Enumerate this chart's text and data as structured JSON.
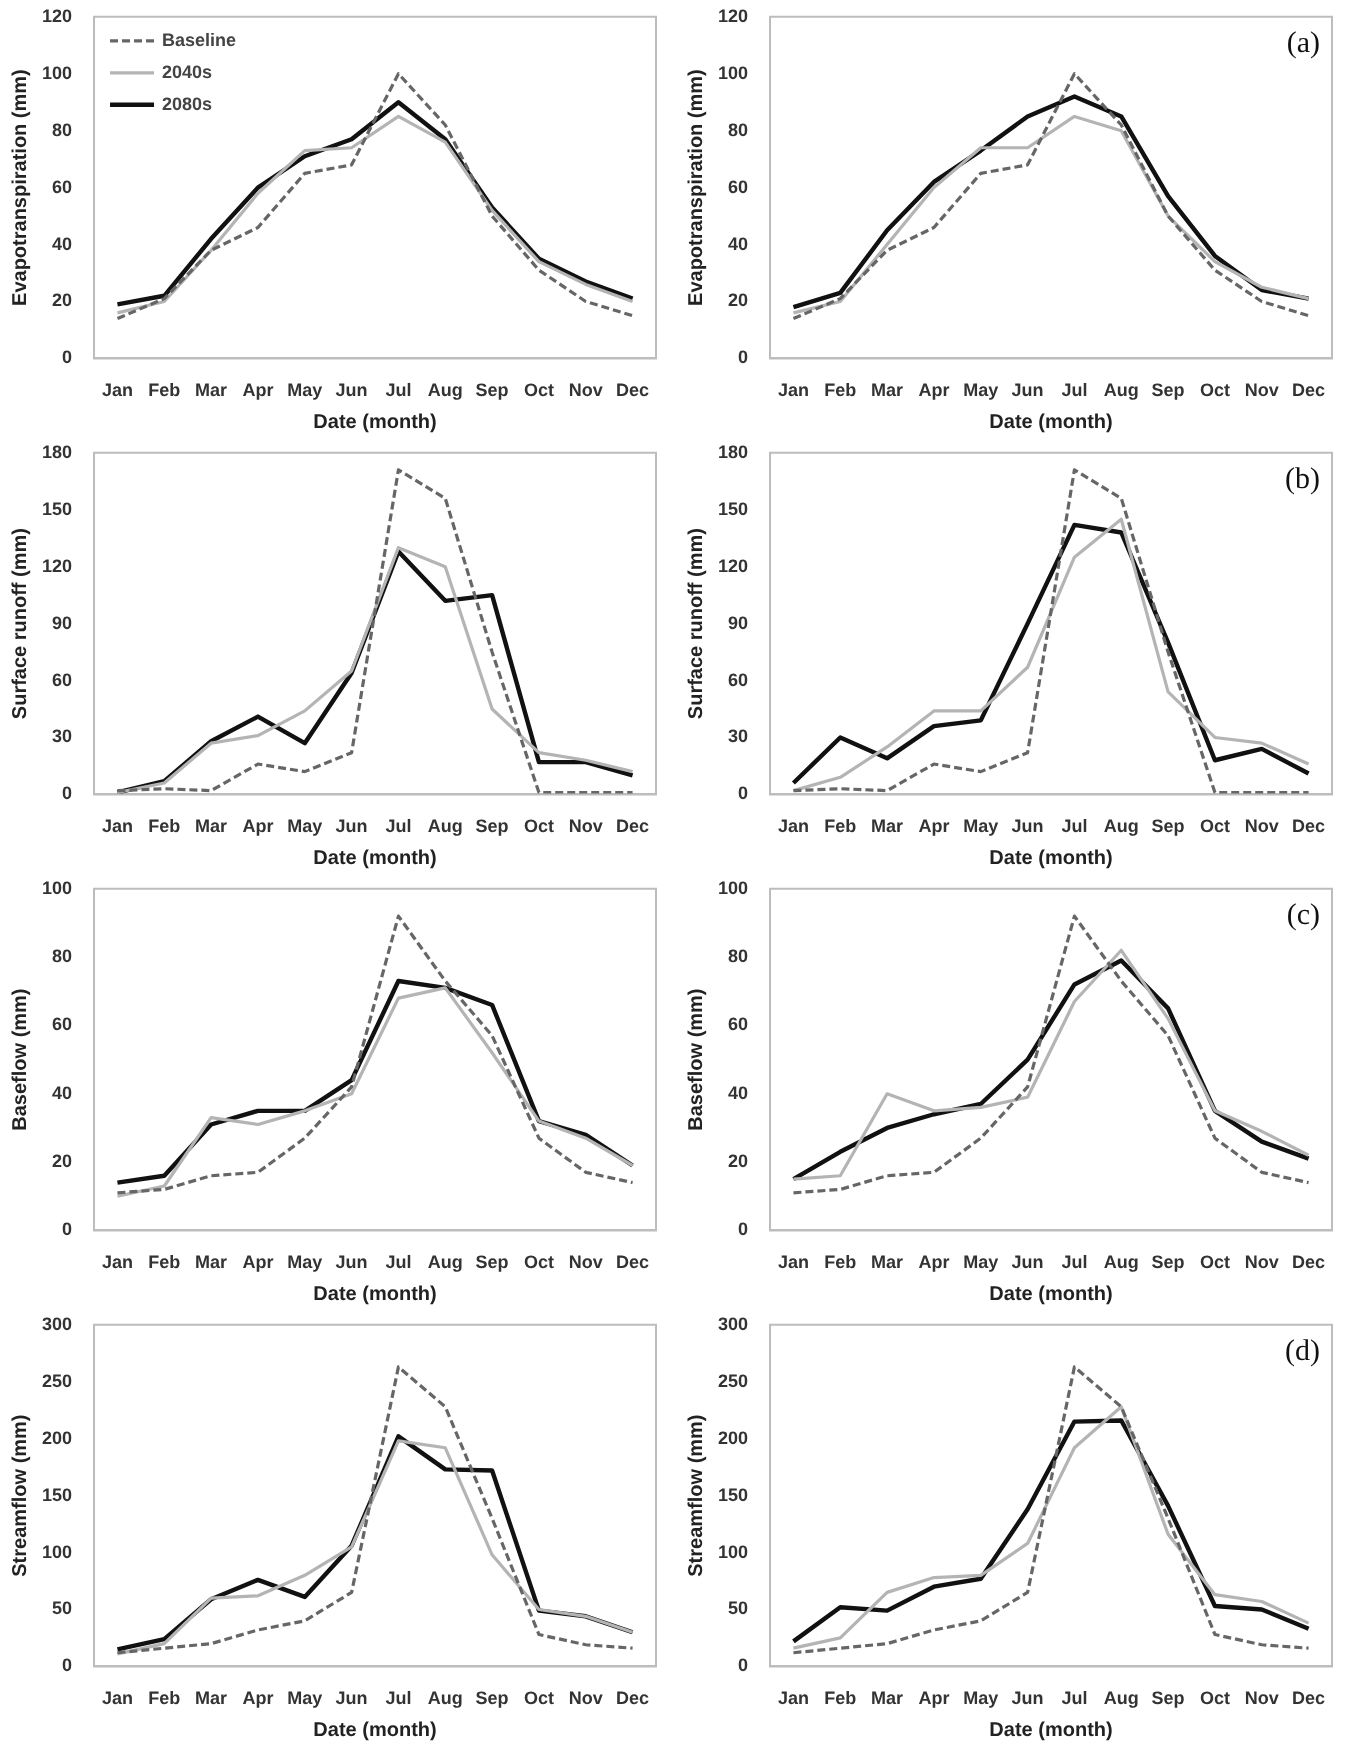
{
  "chart_data": [
    {
      "type": "line",
      "xlabel": "Date (month)",
      "ylabel": "Evapotranspiration (mm)",
      "categories": [
        "Jan",
        "Feb",
        "Mar",
        "Apr",
        "May",
        "Jun",
        "Jul",
        "Aug",
        "Sep",
        "Oct",
        "Nov",
        "Dec"
      ],
      "ylim": [
        0,
        120
      ],
      "yticks": [
        0,
        20,
        40,
        60,
        80,
        100,
        120
      ],
      "grid": false,
      "marker": "none",
      "legend": "top left",
      "series": [
        {
          "name": "Baseline",
          "color": "#666666",
          "line_style": "dashed",
          "values": [
            14,
            21,
            38,
            46,
            65,
            68,
            100,
            82,
            50,
            31,
            20,
            15
          ]
        },
        {
          "name": "2040s",
          "color": "#b4b4b4",
          "line_style": "solid",
          "values": [
            16,
            20,
            38,
            58,
            73,
            74,
            85,
            76,
            52,
            34,
            26,
            20
          ]
        },
        {
          "name": "2080s",
          "color": "#111111",
          "line_style": "solid",
          "values": [
            19,
            22,
            42,
            60,
            71,
            77,
            90,
            77,
            53,
            35,
            27,
            21
          ]
        }
      ]
    },
    {
      "type": "line",
      "xlabel": "Date (month)",
      "ylabel": "Evapotranspiration (mm)",
      "categories": [
        "Jan",
        "Feb",
        "Mar",
        "Apr",
        "May",
        "Jun",
        "Jul",
        "Aug",
        "Sep",
        "Oct",
        "Nov",
        "Dec"
      ],
      "ylim": [
        0,
        120
      ],
      "yticks": [
        0,
        20,
        40,
        60,
        80,
        100,
        120
      ],
      "grid": false,
      "marker": "none",
      "annotations": [
        "(a)"
      ],
      "series": [
        {
          "color": "#666666",
          "line_style": "dashed",
          "values": [
            14,
            21,
            38,
            46,
            65,
            68,
            100,
            82,
            50,
            31,
            20,
            15
          ]
        },
        {
          "color": "#b4b4b4",
          "line_style": "solid",
          "values": [
            16,
            20,
            40,
            60,
            74,
            74,
            85,
            80,
            50,
            34,
            25,
            21
          ]
        },
        {
          "color": "#111111",
          "line_style": "solid",
          "values": [
            18,
            23,
            45,
            62,
            73,
            85,
            92,
            85,
            57,
            36,
            24,
            21
          ]
        }
      ]
    },
    {
      "type": "line",
      "xlabel": "Date (month)",
      "ylabel": "Surface runoff (mm)",
      "categories": [
        "Jan",
        "Feb",
        "Mar",
        "Apr",
        "May",
        "Jun",
        "Jul",
        "Aug",
        "Sep",
        "Oct",
        "Nov",
        "Dec"
      ],
      "ylim": [
        0,
        180
      ],
      "yticks": [
        0,
        30,
        60,
        90,
        120,
        150,
        180
      ],
      "grid": false,
      "marker": "none",
      "series": [
        {
          "color": "#666666",
          "line_style": "dashed",
          "values": [
            2,
            3,
            2,
            16,
            12,
            22,
            171,
            156,
            75,
            1,
            1,
            1
          ]
        },
        {
          "color": "#b4b4b4",
          "line_style": "solid",
          "values": [
            1,
            6,
            27,
            31,
            44,
            65,
            130,
            120,
            45,
            22,
            18,
            12
          ]
        },
        {
          "color": "#111111",
          "line_style": "solid",
          "values": [
            1,
            7,
            28,
            41,
            27,
            64,
            128,
            102,
            105,
            17,
            17,
            10
          ]
        }
      ]
    },
    {
      "type": "line",
      "xlabel": "Date (month)",
      "ylabel": "Surface runoff (mm)",
      "categories": [
        "Jan",
        "Feb",
        "Mar",
        "Apr",
        "May",
        "Jun",
        "Jul",
        "Aug",
        "Sep",
        "Oct",
        "Nov",
        "Dec"
      ],
      "ylim": [
        0,
        180
      ],
      "yticks": [
        0,
        30,
        60,
        90,
        120,
        150,
        180
      ],
      "grid": false,
      "marker": "none",
      "annotations": [
        "(b)"
      ],
      "series": [
        {
          "color": "#666666",
          "line_style": "dashed",
          "values": [
            2,
            3,
            2,
            16,
            12,
            22,
            171,
            156,
            75,
            1,
            1,
            1
          ]
        },
        {
          "color": "#b4b4b4",
          "line_style": "solid",
          "values": [
            2,
            9,
            25,
            44,
            44,
            67,
            125,
            145,
            54,
            30,
            27,
            16
          ]
        },
        {
          "color": "#111111",
          "line_style": "solid",
          "values": [
            6,
            30,
            19,
            36,
            39,
            90,
            142,
            138,
            80,
            18,
            24,
            11
          ]
        }
      ]
    },
    {
      "type": "line",
      "xlabel": "Date (month)",
      "ylabel": "Baseflow (mm)",
      "categories": [
        "Jan",
        "Feb",
        "Mar",
        "Apr",
        "May",
        "Jun",
        "Jul",
        "Aug",
        "Sep",
        "Oct",
        "Nov",
        "Dec"
      ],
      "ylim": [
        0,
        100
      ],
      "yticks": [
        0,
        20,
        40,
        60,
        80,
        100
      ],
      "grid": false,
      "marker": "none",
      "series": [
        {
          "color": "#666666",
          "line_style": "dashed",
          "values": [
            11,
            12,
            16,
            17,
            27,
            42,
            92,
            73,
            57,
            27,
            17,
            14
          ]
        },
        {
          "color": "#b4b4b4",
          "line_style": "solid",
          "values": [
            10,
            13,
            33,
            31,
            35,
            40,
            68,
            71,
            52,
            32,
            27,
            19
          ]
        },
        {
          "color": "#111111",
          "line_style": "solid",
          "values": [
            14,
            16,
            31,
            35,
            35,
            44,
            73,
            71,
            66,
            32,
            28,
            19
          ]
        }
      ]
    },
    {
      "type": "line",
      "xlabel": "Date (month)",
      "ylabel": "Baseflow (mm)",
      "categories": [
        "Jan",
        "Feb",
        "Mar",
        "Apr",
        "May",
        "Jun",
        "Jul",
        "Aug",
        "Sep",
        "Oct",
        "Nov",
        "Dec"
      ],
      "ylim": [
        0,
        100
      ],
      "yticks": [
        0,
        20,
        40,
        60,
        80,
        100
      ],
      "grid": false,
      "marker": "none",
      "annotations": [
        "(c)"
      ],
      "series": [
        {
          "color": "#666666",
          "line_style": "dashed",
          "values": [
            11,
            12,
            16,
            17,
            27,
            42,
            92,
            73,
            57,
            27,
            17,
            14
          ]
        },
        {
          "color": "#b4b4b4",
          "line_style": "solid",
          "values": [
            15,
            16,
            40,
            35,
            36,
            39,
            67,
            82,
            62,
            35,
            29,
            22
          ]
        },
        {
          "color": "#111111",
          "line_style": "solid",
          "values": [
            15,
            23,
            30,
            34,
            37,
            50,
            72,
            79,
            65,
            35,
            26,
            21
          ]
        }
      ]
    },
    {
      "type": "line",
      "xlabel": "Date (month)",
      "ylabel": "Streamflow (mm)",
      "categories": [
        "Jan",
        "Feb",
        "Mar",
        "Apr",
        "May",
        "Jun",
        "Jul",
        "Aug",
        "Sep",
        "Oct",
        "Nov",
        "Dec"
      ],
      "ylim": [
        0,
        300
      ],
      "yticks": [
        0,
        50,
        100,
        150,
        200,
        250,
        300
      ],
      "grid": false,
      "marker": "none",
      "series": [
        {
          "color": "#666666",
          "line_style": "dashed",
          "values": [
            12,
            16,
            20,
            32,
            40,
            65,
            263,
            228,
            130,
            28,
            19,
            16
          ]
        },
        {
          "color": "#b4b4b4",
          "line_style": "solid",
          "values": [
            11,
            20,
            60,
            62,
            80,
            105,
            198,
            192,
            98,
            50,
            44,
            30
          ]
        },
        {
          "color": "#111111",
          "line_style": "solid",
          "values": [
            15,
            24,
            59,
            76,
            61,
            106,
            202,
            173,
            172,
            49,
            44,
            30
          ]
        }
      ]
    },
    {
      "type": "line",
      "xlabel": "Date (month)",
      "ylabel": "Streamflow (mm)",
      "categories": [
        "Jan",
        "Feb",
        "Mar",
        "Apr",
        "May",
        "Jun",
        "Jul",
        "Aug",
        "Sep",
        "Oct",
        "Nov",
        "Dec"
      ],
      "ylim": [
        0,
        300
      ],
      "yticks": [
        0,
        50,
        100,
        150,
        200,
        250,
        300
      ],
      "grid": false,
      "marker": "none",
      "annotations": [
        "(d)"
      ],
      "series": [
        {
          "color": "#666666",
          "line_style": "dashed",
          "values": [
            12,
            16,
            20,
            32,
            40,
            65,
            263,
            228,
            130,
            28,
            19,
            16
          ]
        },
        {
          "color": "#b4b4b4",
          "line_style": "solid",
          "values": [
            16,
            25,
            65,
            78,
            80,
            108,
            192,
            228,
            116,
            63,
            57,
            38
          ]
        },
        {
          "color": "#111111",
          "line_style": "solid",
          "values": [
            22,
            52,
            49,
            70,
            77,
            138,
            215,
            216,
            141,
            53,
            50,
            33
          ]
        }
      ]
    }
  ]
}
